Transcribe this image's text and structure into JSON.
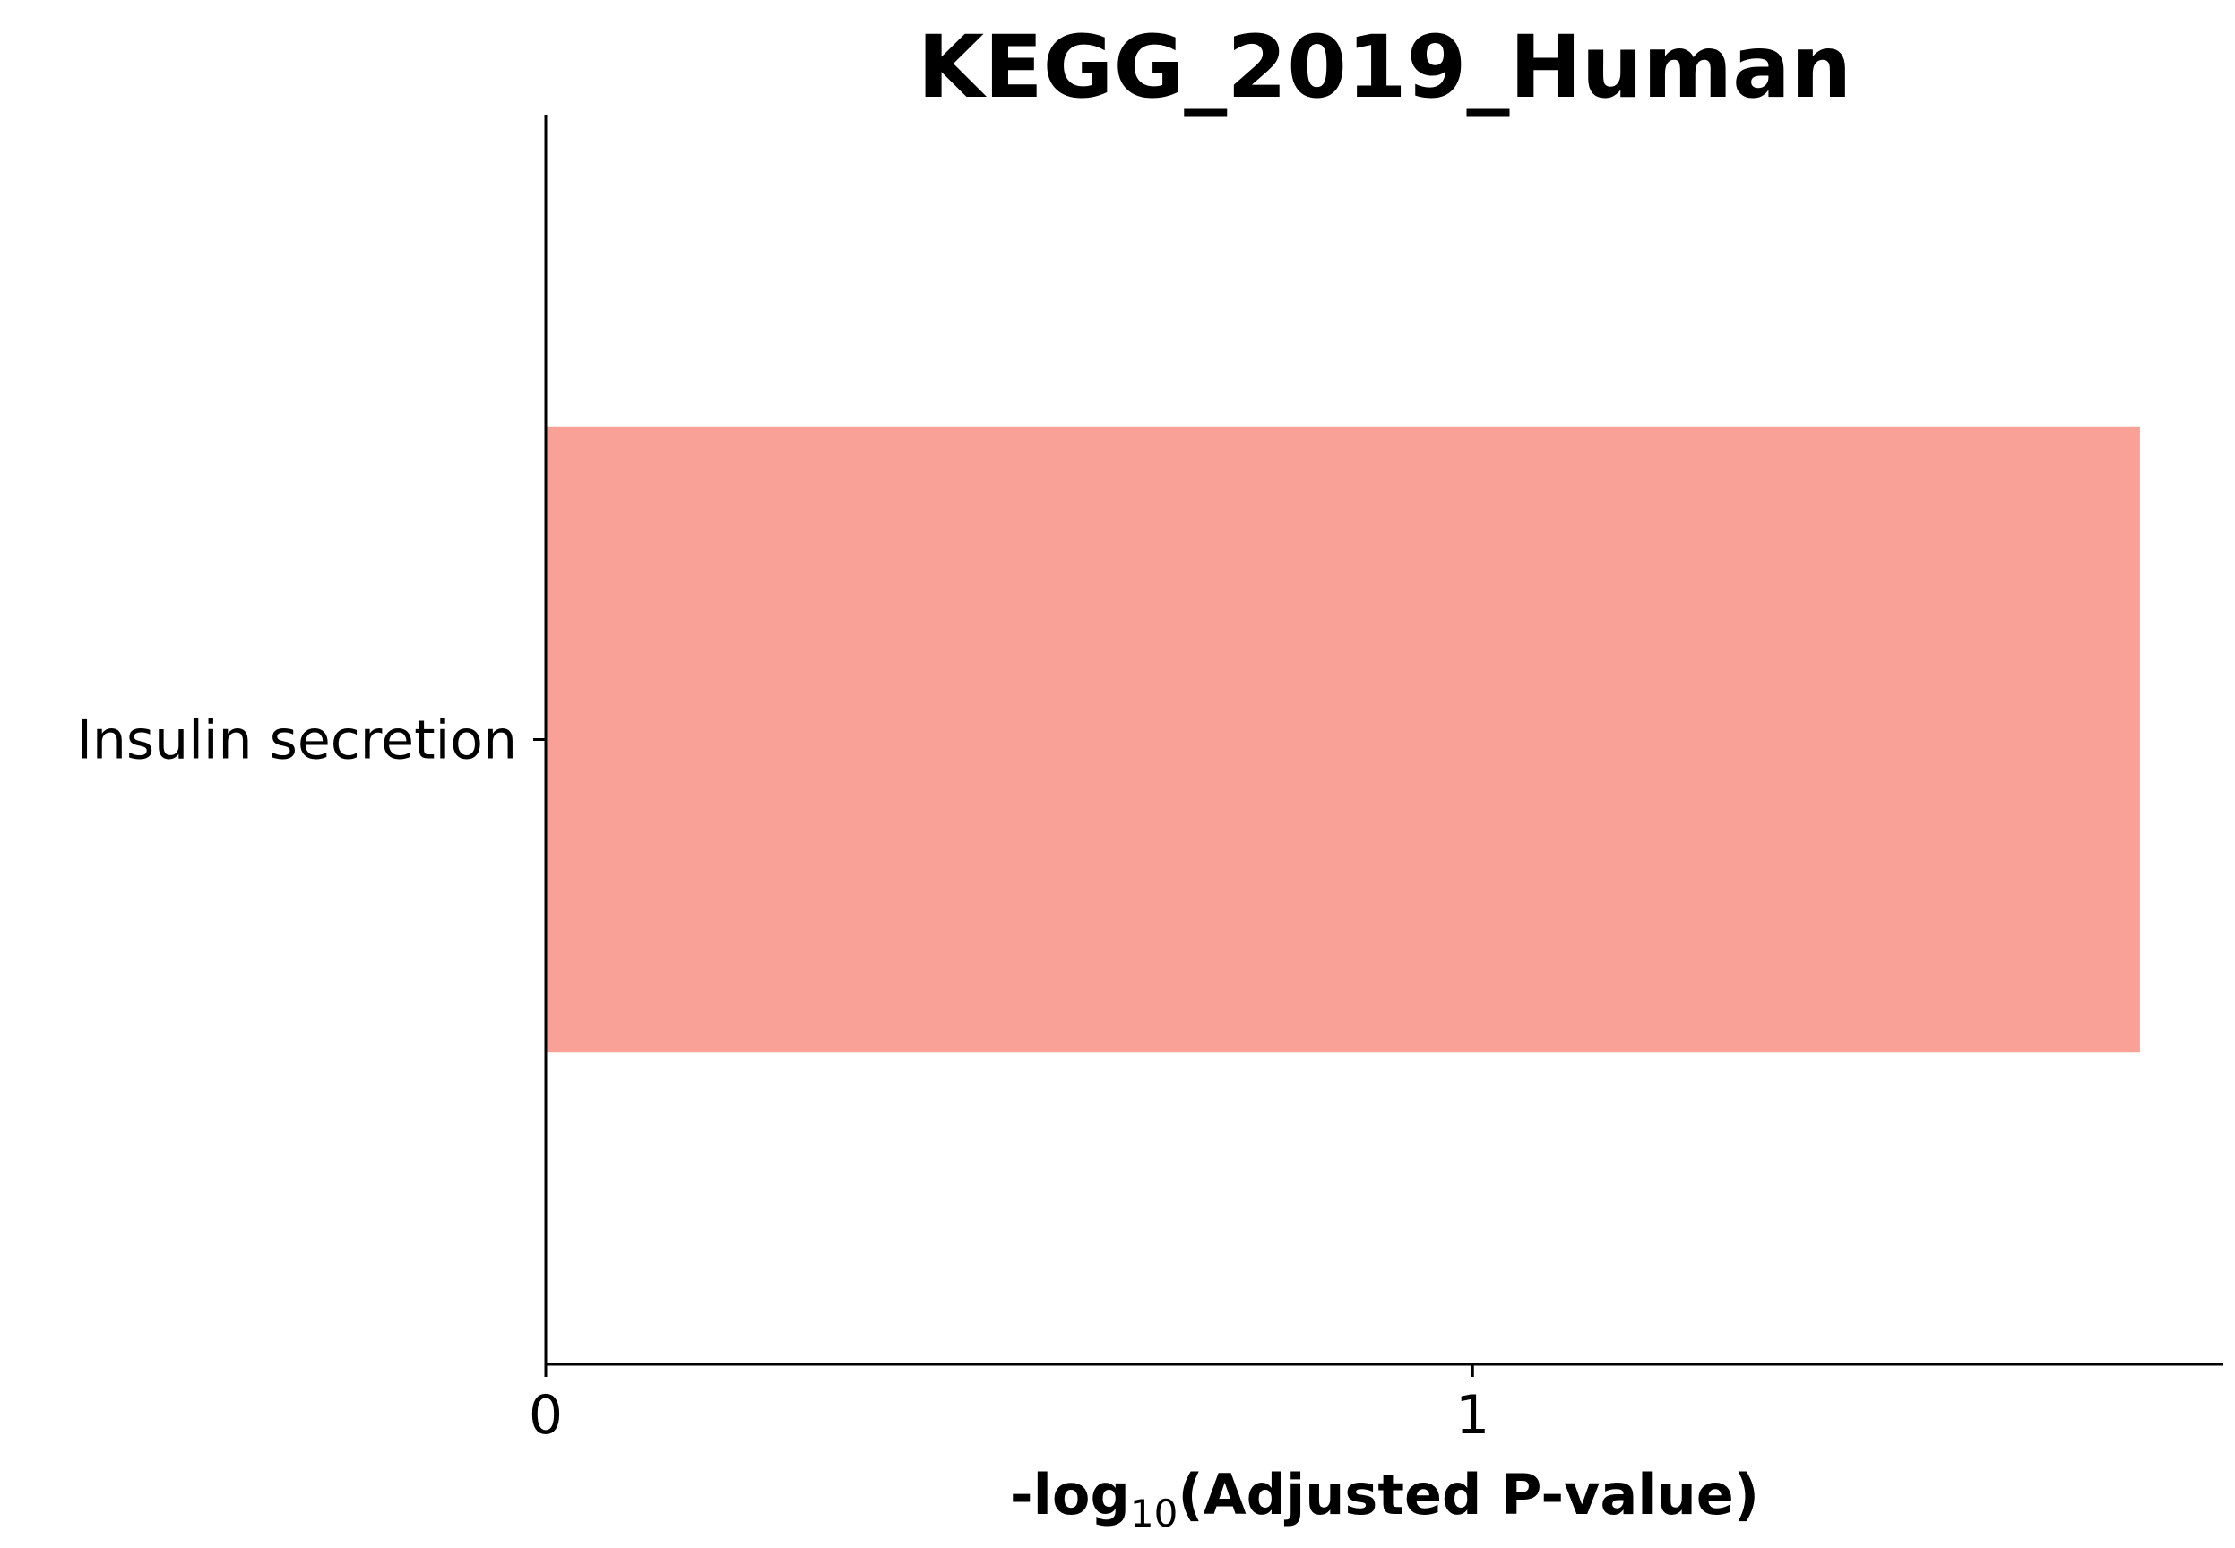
{
  "chart_data": {
    "type": "bar",
    "orientation": "horizontal",
    "title": "KEGG_2019_Human",
    "categories": [
      "Insulin secretion"
    ],
    "values": [
      1.72
    ],
    "xlabel": {
      "prefix": "-log",
      "subscript": "10",
      "suffix": "(Adjusted P-value)"
    },
    "ylabel": "",
    "xlim": [
      0,
      1.81
    ],
    "xticks": [
      0,
      1
    ],
    "grid": false,
    "bar_color": "#f9a196",
    "axis_color": "#000000"
  }
}
